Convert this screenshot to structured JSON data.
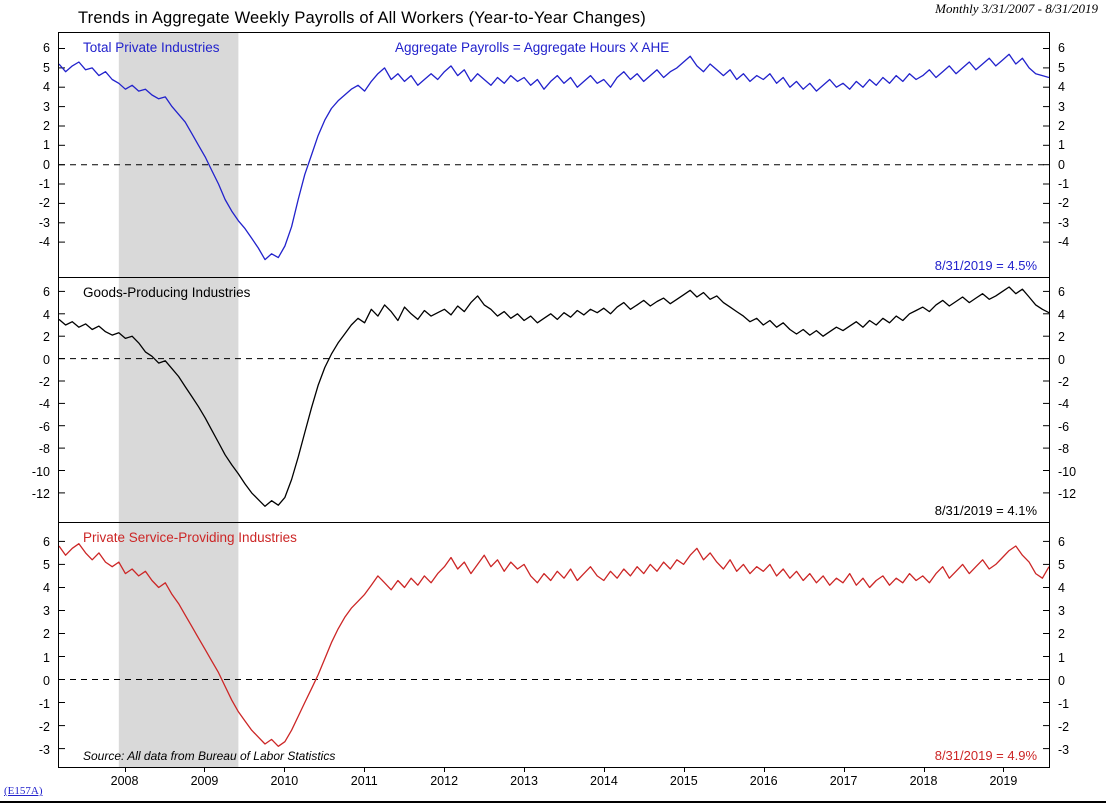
{
  "header": {
    "title": "Trends in Aggregate Weekly Payrolls of All Workers (Year-to-Year Changes)",
    "frequency_note": "Monthly 3/31/2007 - 8/31/2019"
  },
  "footer": {
    "series_code": "(E157A)"
  },
  "colors": {
    "blue": "#2222cc",
    "black": "#000000",
    "red": "#cc2626",
    "recession_band": "#d9d9d9"
  },
  "x_axis": {
    "start": "2007-03",
    "end": "2019-08",
    "frequency": "monthly",
    "n_points": 150,
    "year_labels": [
      "2008",
      "2009",
      "2010",
      "2011",
      "2012",
      "2013",
      "2014",
      "2015",
      "2016",
      "2017",
      "2018",
      "2019"
    ],
    "year_tick_indices": [
      10,
      22,
      34,
      46,
      58,
      70,
      82,
      94,
      106,
      118,
      130,
      142
    ],
    "recession_band_indices": [
      9,
      27
    ]
  },
  "chart_data": [
    {
      "type": "line",
      "name": "Total Private Industries",
      "color_key": "blue",
      "annotation": "Aggregate Payrolls = Aggregate Hours X AHE",
      "end_label": "8/31/2019 = 4.5%",
      "y_ticks": [
        6,
        5,
        4,
        3,
        2,
        1,
        0,
        -1,
        -2,
        -3,
        -4
      ],
      "y_domain": [
        -5.8,
        6.8
      ],
      "values": [
        5.2,
        4.8,
        5.1,
        5.3,
        4.9,
        5.0,
        4.6,
        4.8,
        4.4,
        4.2,
        3.9,
        4.1,
        3.8,
        3.9,
        3.6,
        3.4,
        3.5,
        3.0,
        2.6,
        2.2,
        1.6,
        1.0,
        0.4,
        -0.3,
        -1.0,
        -1.8,
        -2.4,
        -2.9,
        -3.3,
        -3.8,
        -4.3,
        -4.9,
        -4.6,
        -4.8,
        -4.2,
        -3.2,
        -1.8,
        -0.5,
        0.5,
        1.5,
        2.3,
        2.9,
        3.3,
        3.6,
        3.9,
        4.1,
        3.8,
        4.3,
        4.7,
        5.0,
        4.4,
        4.7,
        4.3,
        4.6,
        4.1,
        4.4,
        4.7,
        4.4,
        4.8,
        5.1,
        4.6,
        4.9,
        4.3,
        4.7,
        4.4,
        4.1,
        4.5,
        4.2,
        4.6,
        4.3,
        4.5,
        4.1,
        4.4,
        3.9,
        4.3,
        4.6,
        4.2,
        4.5,
        4.0,
        4.3,
        4.6,
        4.2,
        4.4,
        4.0,
        4.5,
        4.8,
        4.4,
        4.7,
        4.3,
        4.6,
        4.9,
        4.5,
        4.8,
        5.0,
        5.3,
        5.6,
        5.1,
        4.8,
        5.2,
        4.9,
        4.6,
        4.9,
        4.4,
        4.7,
        4.3,
        4.6,
        4.4,
        4.7,
        4.2,
        4.5,
        4.0,
        4.3,
        3.9,
        4.2,
        3.8,
        4.1,
        4.4,
        4.0,
        4.2,
        3.9,
        4.3,
        4.0,
        4.4,
        4.1,
        4.5,
        4.2,
        4.6,
        4.3,
        4.7,
        4.4,
        4.6,
        4.9,
        4.5,
        4.8,
        5.1,
        4.7,
        5.0,
        5.3,
        4.9,
        5.2,
        5.5,
        5.1,
        5.4,
        5.7,
        5.2,
        5.5,
        5.0,
        4.7,
        4.6,
        4.5
      ]
    },
    {
      "type": "line",
      "name": "Goods-Producing Industries",
      "color_key": "black",
      "end_label": "8/31/2019 = 4.1%",
      "y_ticks": [
        6,
        4,
        2,
        0,
        -2,
        -4,
        -6,
        -8,
        -10,
        -12
      ],
      "y_domain": [
        -14.6,
        7.2
      ],
      "values": [
        3.5,
        3.0,
        3.3,
        2.8,
        3.1,
        2.6,
        2.9,
        2.4,
        2.1,
        2.3,
        1.8,
        2.0,
        1.4,
        0.6,
        0.2,
        -0.4,
        -0.2,
        -0.9,
        -1.6,
        -2.5,
        -3.4,
        -4.3,
        -5.3,
        -6.4,
        -7.5,
        -8.6,
        -9.5,
        -10.3,
        -11.2,
        -12.0,
        -12.6,
        -13.2,
        -12.7,
        -13.1,
        -12.4,
        -10.8,
        -8.8,
        -6.6,
        -4.4,
        -2.4,
        -0.8,
        0.4,
        1.4,
        2.2,
        3.0,
        3.6,
        3.2,
        4.4,
        3.8,
        4.8,
        4.2,
        3.4,
        4.6,
        4.0,
        3.5,
        4.3,
        3.8,
        4.1,
        4.4,
        3.9,
        4.7,
        4.2,
        5.0,
        5.6,
        4.8,
        4.4,
        3.8,
        4.2,
        3.6,
        4.0,
        3.4,
        3.8,
        3.2,
        3.6,
        4.0,
        3.5,
        4.1,
        3.7,
        4.3,
        3.9,
        4.4,
        4.1,
        4.5,
        4.0,
        4.6,
        5.0,
        4.4,
        4.8,
        5.2,
        4.7,
        5.1,
        5.4,
        4.9,
        5.3,
        5.7,
        6.1,
        5.5,
        5.9,
        5.3,
        5.6,
        5.0,
        4.6,
        4.2,
        3.8,
        3.3,
        3.6,
        3.0,
        3.4,
        2.8,
        3.2,
        2.6,
        2.2,
        2.6,
        2.1,
        2.5,
        2.0,
        2.4,
        2.8,
        2.5,
        2.9,
        3.3,
        2.8,
        3.4,
        3.0,
        3.6,
        3.2,
        3.8,
        3.4,
        4.0,
        4.3,
        4.6,
        4.2,
        4.8,
        5.2,
        4.7,
        5.1,
        5.5,
        5.0,
        5.4,
        5.8,
        5.3,
        5.6,
        6.0,
        6.4,
        5.8,
        6.2,
        5.5,
        4.8,
        4.4,
        4.1
      ]
    },
    {
      "type": "line",
      "name": "Private Service-Providing Industries",
      "color_key": "red",
      "end_label": "8/31/2019 = 4.9%",
      "source_note": "Source: All data from Bureau of Labor Statistics",
      "y_ticks": [
        6,
        5,
        4,
        3,
        2,
        1,
        0,
        -1,
        -2,
        -3
      ],
      "y_domain": [
        -3.8,
        6.8
      ],
      "values": [
        5.8,
        5.4,
        5.7,
        5.9,
        5.5,
        5.2,
        5.5,
        5.1,
        4.9,
        5.1,
        4.6,
        4.8,
        4.5,
        4.7,
        4.3,
        4.0,
        4.2,
        3.7,
        3.3,
        2.8,
        2.3,
        1.8,
        1.3,
        0.8,
        0.3,
        -0.3,
        -0.9,
        -1.4,
        -1.8,
        -2.2,
        -2.5,
        -2.8,
        -2.6,
        -2.9,
        -2.7,
        -2.2,
        -1.6,
        -1.0,
        -0.4,
        0.2,
        0.9,
        1.6,
        2.2,
        2.7,
        3.1,
        3.4,
        3.7,
        4.1,
        4.5,
        4.2,
        3.9,
        4.3,
        4.0,
        4.4,
        4.1,
        4.5,
        4.2,
        4.6,
        4.9,
        5.3,
        4.8,
        5.1,
        4.6,
        5.0,
        5.4,
        4.9,
        5.2,
        4.7,
        5.1,
        4.8,
        5.0,
        4.5,
        4.2,
        4.6,
        4.3,
        4.7,
        4.4,
        4.8,
        4.3,
        4.6,
        4.9,
        4.5,
        4.3,
        4.7,
        4.4,
        4.8,
        4.5,
        4.9,
        4.6,
        5.0,
        4.7,
        5.1,
        4.8,
        5.2,
        5.0,
        5.4,
        5.7,
        5.2,
        5.5,
        5.1,
        4.8,
        5.2,
        4.7,
        5.0,
        4.6,
        4.9,
        4.7,
        5.0,
        4.5,
        4.8,
        4.4,
        4.7,
        4.3,
        4.6,
        4.2,
        4.5,
        4.1,
        4.4,
        4.2,
        4.6,
        4.1,
        4.4,
        4.0,
        4.3,
        4.5,
        4.1,
        4.4,
        4.2,
        4.6,
        4.3,
        4.5,
        4.2,
        4.6,
        4.9,
        4.4,
        4.7,
        5.0,
        4.6,
        4.9,
        5.2,
        4.8,
        5.0,
        5.3,
        5.6,
        5.8,
        5.4,
        5.1,
        4.6,
        4.4,
        4.9
      ]
    }
  ]
}
